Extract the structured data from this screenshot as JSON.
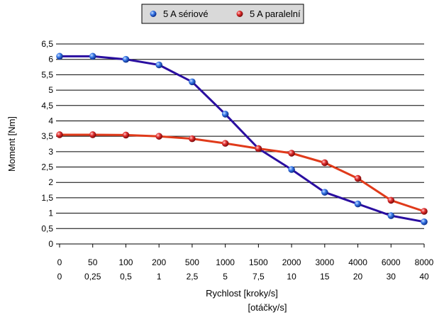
{
  "chart_data": {
    "type": "line",
    "title": "",
    "xlabel": "Rychlost [kroky/s]",
    "xlabel2": "[otáčky/s]",
    "ylabel": "Moment [Nm]",
    "categories": [
      "0",
      "50",
      "100",
      "200",
      "500",
      "1000",
      "1500",
      "2000",
      "3000",
      "4000",
      "6000",
      "8000"
    ],
    "categories2": [
      "0",
      "0,25",
      "0,5",
      "1",
      "2,5",
      "5",
      "7,5",
      "10",
      "15",
      "20",
      "30",
      "40"
    ],
    "yticks": [
      "0",
      "0,5",
      "1",
      "1,5",
      "2",
      "2,5",
      "3",
      "3,5",
      "4",
      "4,5",
      "5",
      "5,5",
      "6",
      "6,5"
    ],
    "ylim": [
      0,
      6.5
    ],
    "grid": true,
    "legend_position": "top",
    "series": [
      {
        "name": "5 A sériové",
        "color": "#2a0ea0",
        "marker_color": "#2f6fe0",
        "values": [
          6.1,
          6.1,
          6.0,
          5.82,
          5.27,
          4.22,
          3.1,
          2.42,
          1.68,
          1.3,
          0.92,
          0.72
        ]
      },
      {
        "name": "5 A paralelní",
        "color": "#e03a1a",
        "marker_color": "#d42a2a",
        "values": [
          3.55,
          3.55,
          3.54,
          3.5,
          3.42,
          3.27,
          3.1,
          2.95,
          2.64,
          2.13,
          1.42,
          1.06
        ]
      }
    ]
  }
}
